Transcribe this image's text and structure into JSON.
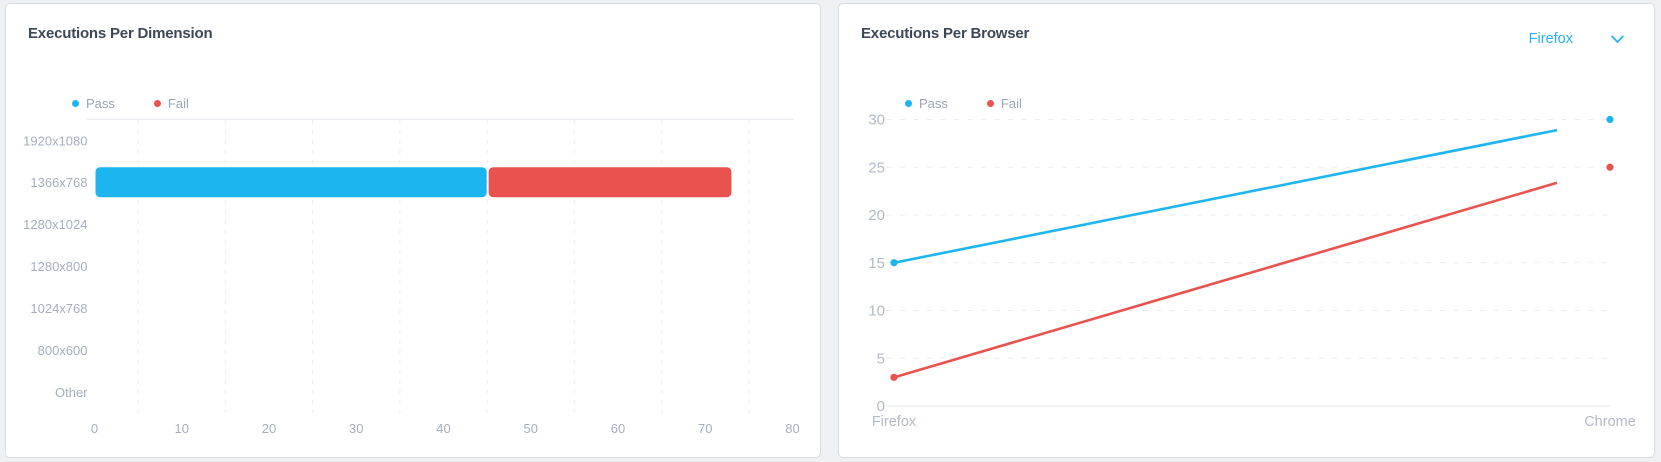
{
  "colors": {
    "pass": "#1cb5ef",
    "fail": "#e8534f",
    "title_text": "#3d4757",
    "legend_text": "#9ba5b4",
    "axis_text": "#a6aebc",
    "axis_text_light": "#b3bac6",
    "grid_line": "#e9ebf0",
    "axis_line": "#e3e6eb",
    "card_border": "#d9dde3",
    "card_bg": "#ffffff",
    "page_bg": "#eef0f4",
    "dropdown_text": "#29b2ef"
  },
  "left_card": {
    "title": "Executions Per Dimension",
    "legend": [
      "Pass",
      "Fail"
    ]
  },
  "right_card": {
    "title": "Executions Per Browser",
    "legend": [
      "Pass",
      "Fail"
    ],
    "browser_selector": {
      "selected": "Firefox"
    }
  },
  "chart_data": [
    {
      "type": "bar",
      "orientation": "horizontal",
      "stacked": true,
      "title": "Executions Per Dimension",
      "categories": [
        "1920x1080",
        "1366x768",
        "1280x1024",
        "1280x800",
        "1024x768",
        "800x600",
        "Other"
      ],
      "series": [
        {
          "name": "Pass",
          "color": "#1cb5ef",
          "values": [
            0,
            45,
            0,
            0,
            0,
            0,
            0
          ]
        },
        {
          "name": "Fail",
          "color": "#e8534f",
          "values": [
            0,
            28,
            0,
            0,
            0,
            0,
            0
          ]
        }
      ],
      "xlabel": "",
      "ylabel": "",
      "xlim": [
        0,
        80
      ],
      "xticks": [
        0,
        10,
        20,
        30,
        40,
        50,
        60,
        70,
        80
      ],
      "grid": "vertical-dashed",
      "legend_position": "top-left"
    },
    {
      "type": "line",
      "title": "Executions Per Browser",
      "categories": [
        "Firefox",
        "Chrome"
      ],
      "series": [
        {
          "name": "Pass",
          "color": "#1cb5ef",
          "values": [
            15,
            30
          ]
        },
        {
          "name": "Fail",
          "color": "#e8534f",
          "values": [
            3,
            25
          ]
        }
      ],
      "xlabel": "",
      "ylabel": "",
      "ylim": [
        0,
        30
      ],
      "yticks": [
        0,
        5,
        10,
        15,
        20,
        25,
        30
      ],
      "grid": "horizontal-dashed",
      "legend_position": "top-left",
      "line_draw_progress": 0.926
    }
  ]
}
